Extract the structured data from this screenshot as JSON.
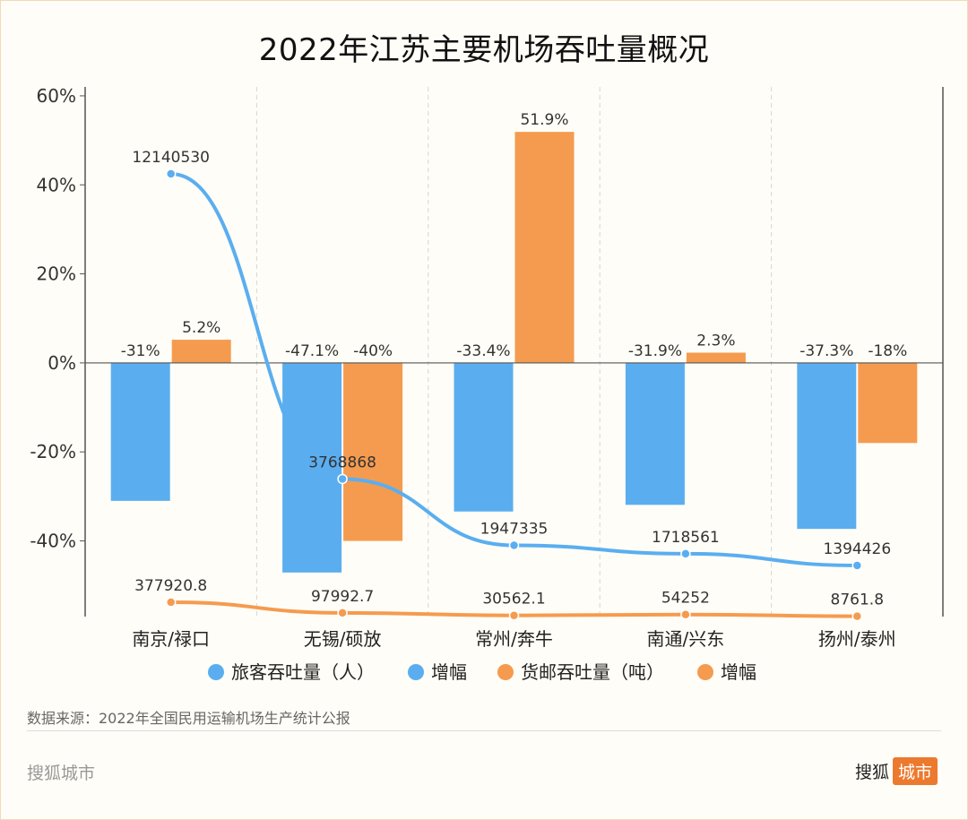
{
  "title": "2022年江苏主要机场吞吐量概况",
  "source": "数据来源：2022年全国民用运输机场生产统计公报",
  "brand": {
    "left": "搜狐城市",
    "right_main": "搜狐",
    "right_tag": "城市"
  },
  "colors": {
    "blue": "#5aaef0",
    "orange": "#f59b4f",
    "axis": "#555555",
    "grid": "#d6d6d6"
  },
  "chart_data": {
    "type": "bar",
    "categories": [
      "南京/禄口",
      "无锡/硕放",
      "常州/奔牛",
      "南通/兴东",
      "扬州/泰州"
    ],
    "ylim": [
      -57,
      62
    ],
    "yticks": [
      60,
      40,
      20,
      0,
      -20,
      -40
    ],
    "ytick_labels": [
      "60%",
      "40%",
      "20%",
      "0%",
      "-20%",
      "-40%"
    ],
    "bar_series": [
      {
        "name": "增幅",
        "color": "#5aaef0",
        "values": [
          -31,
          -47.1,
          -33.4,
          -31.9,
          -37.3
        ],
        "labels": [
          "-31%",
          "-47.1%",
          "-33.4%",
          "-31.9%",
          "-37.3%"
        ]
      },
      {
        "name": "增幅",
        "color": "#f59b4f",
        "values": [
          5.2,
          -40,
          51.9,
          2.3,
          -18
        ],
        "labels": [
          "5.2%",
          "-40%",
          "51.9%",
          "2.3%",
          "-18%"
        ]
      }
    ],
    "line_series": [
      {
        "name": "旅客吞吐量（人）",
        "color": "#5aaef0",
        "values": [
          12140530,
          3768868,
          1947335,
          1718561,
          1394426
        ],
        "labels": [
          "12140530",
          "3768868",
          "1947335",
          "1718561",
          "1394426"
        ]
      },
      {
        "name": "货邮吞吐量（吨）",
        "color": "#f59b4f",
        "values": [
          377920.8,
          97992.7,
          30562.1,
          54252,
          8761.8
        ],
        "labels": [
          "377920.8",
          "97992.7",
          "30562.1",
          "54252",
          "8761.8"
        ]
      }
    ],
    "legend": [
      {
        "label": "旅客吞吐量（人）",
        "color": "#5aaef0"
      },
      {
        "label": "增幅",
        "color": "#5aaef0"
      },
      {
        "label": "货邮吞吐量（吨）",
        "color": "#f59b4f"
      },
      {
        "label": "增幅",
        "color": "#f59b4f"
      }
    ]
  }
}
